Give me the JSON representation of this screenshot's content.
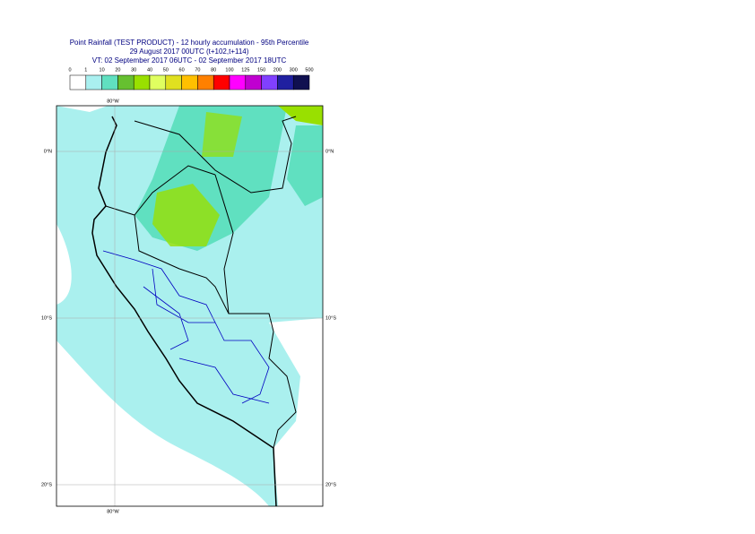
{
  "header": {
    "title": "Point Rainfall (TEST PRODUCT) - 12 hourly accumulation - 95th Percentile",
    "subtitle": "29 August 2017 00UTC (t+102,t+114)",
    "validity": "VT: 02 September 2017 06UTC - 02 September 2017 18UTC"
  },
  "legend": {
    "thresholds": [
      0,
      1,
      10,
      20,
      30,
      40,
      50,
      60,
      70,
      80,
      100,
      125,
      150,
      200,
      300,
      500
    ],
    "colors": [
      "#ffffff",
      "#aaf0f0",
      "#60e0c0",
      "#66c030",
      "#99e000",
      "#e0ff60",
      "#e0e020",
      "#ffc000",
      "#ff8000",
      "#ff0000",
      "#ff00ff",
      "#c000d0",
      "#8040ff",
      "#2020a0",
      "#101050"
    ]
  },
  "map": {
    "lon_label": "80°W",
    "lat_labels": [
      "0°N",
      "10°S",
      "20°S"
    ]
  }
}
